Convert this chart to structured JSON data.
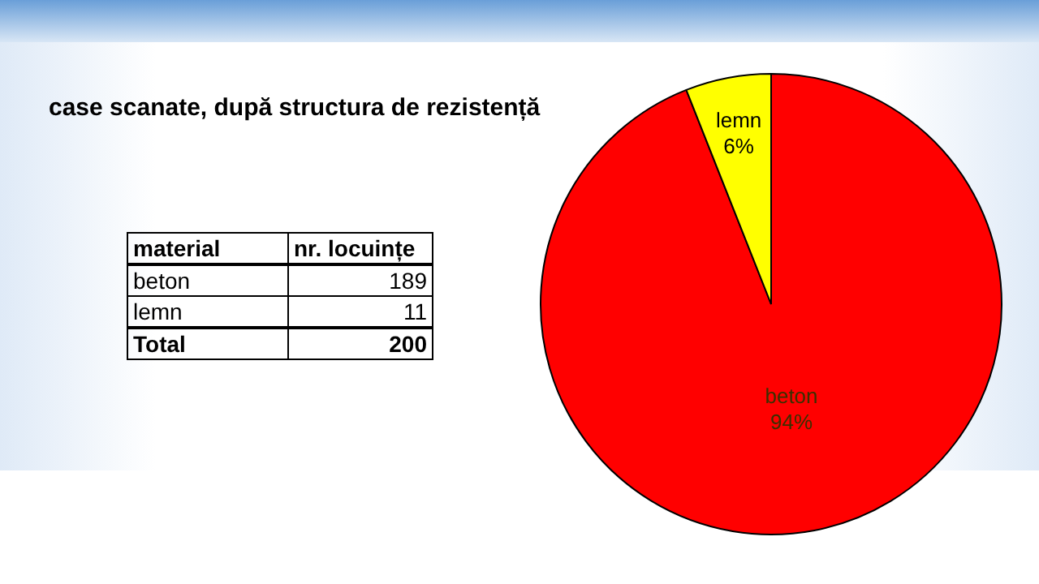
{
  "chart_data": {
    "type": "pie",
    "title": "case scanate, după structura de rezistență",
    "categories": [
      "beton",
      "lemn"
    ],
    "values": [
      94,
      6
    ],
    "colors": [
      "#ff0000",
      "#ffff00"
    ],
    "value_labels": [
      "94%",
      "6%"
    ],
    "annotations": [
      "material",
      "nr. locuințe",
      "189",
      "11",
      "Total",
      "200"
    ],
    "legend": false
  }
}
